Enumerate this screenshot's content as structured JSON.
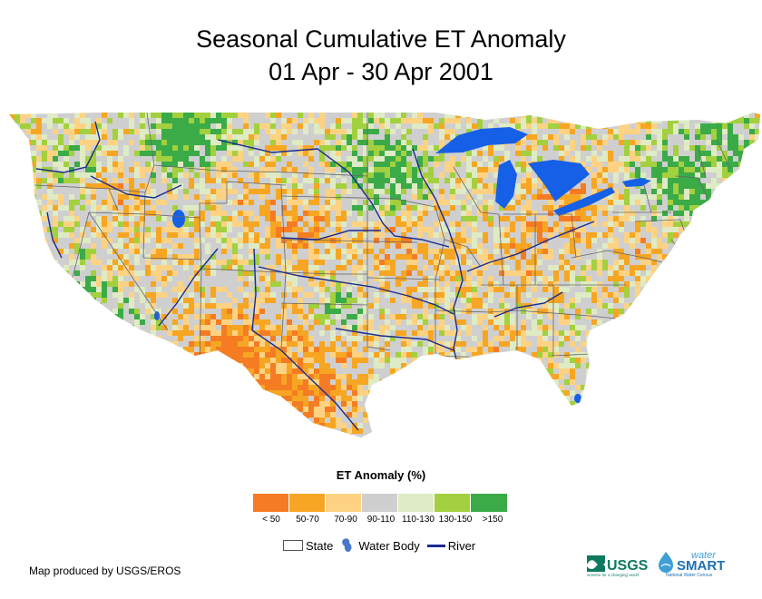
{
  "title": {
    "line1": "Seasonal Cumulative ET Anomaly",
    "line2": "01 Apr - 30 Apr 2001"
  },
  "legend": {
    "title": "ET Anomaly (%)",
    "classes": [
      {
        "label": "< 50",
        "color": "#f57c22"
      },
      {
        "label": "50-70",
        "color": "#f6a623"
      },
      {
        "label": "70-90",
        "color": "#fdd383"
      },
      {
        "label": "90-110",
        "color": "#cfcfcf"
      },
      {
        "label": "110-130",
        "color": "#dfebc4"
      },
      {
        "label": "130-150",
        "color": "#a3d03e"
      },
      {
        "label": ">150",
        "color": "#3aab47"
      }
    ],
    "symbols": {
      "state": "State",
      "water_body": "Water Body",
      "river": "River"
    }
  },
  "map": {
    "region": "Conterminous United States",
    "water_color": "#1560e6",
    "river_color": "#1a2c8f",
    "state_line_color": "#666666"
  },
  "credit": "Map produced by USGS/EROS",
  "logos": {
    "usgs": {
      "name": "USGS",
      "tagline": "science for a changing world"
    },
    "watersmart": {
      "top": "water",
      "name": "SMART",
      "sub": "National Water Census"
    }
  }
}
